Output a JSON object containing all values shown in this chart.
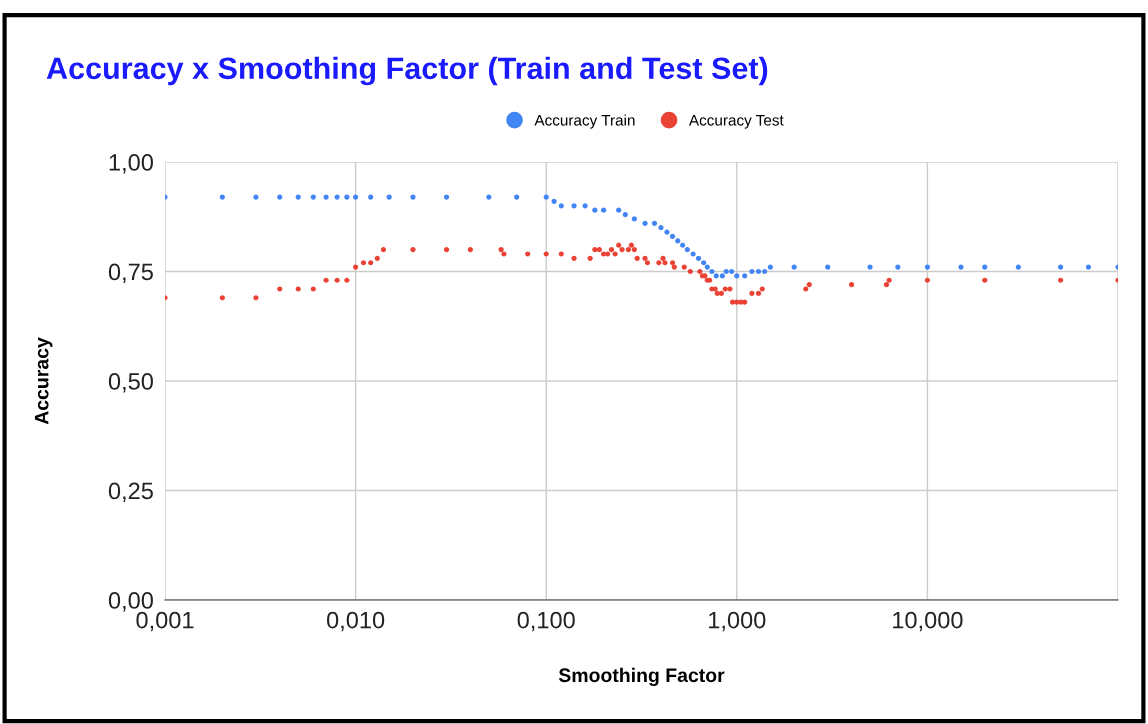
{
  "chart_data": {
    "type": "scatter",
    "title": "Accuracy x Smoothing Factor (Train and Test Set)",
    "xlabel": "Smoothing Factor",
    "ylabel": "Accuracy",
    "log": "x",
    "grid": true,
    "legend": "top",
    "marker": "circle",
    "xlim": [
      0.001,
      100
    ],
    "ylim": [
      0,
      1
    ],
    "xticks": [
      {
        "value": 0.001,
        "label": "0,001"
      },
      {
        "value": 0.01,
        "label": "0,010"
      },
      {
        "value": 0.1,
        "label": "0,100"
      },
      {
        "value": 1,
        "label": "1,000"
      },
      {
        "value": 10,
        "label": "10,000"
      },
      {
        "value": 100,
        "label": null
      }
    ],
    "yticks": [
      {
        "value": 0,
        "label": "0,00"
      },
      {
        "value": 0.25,
        "label": "0,25"
      },
      {
        "value": 0.5,
        "label": "0,50"
      },
      {
        "value": 0.75,
        "label": "0,75"
      },
      {
        "value": 1,
        "label": "1,00"
      }
    ],
    "series": [
      {
        "name": "Accuracy Train",
        "color": "#4285f4",
        "x": [
          0.001,
          0.002,
          0.003,
          0.004,
          0.005,
          0.006,
          0.007,
          0.008,
          0.009,
          0.01,
          0.012,
          0.015,
          0.02,
          0.03,
          0.05,
          0.07,
          0.1,
          0.11,
          0.12,
          0.14,
          0.16,
          0.18,
          0.2,
          0.24,
          0.26,
          0.29,
          0.33,
          0.37,
          0.4,
          0.43,
          0.46,
          0.49,
          0.52,
          0.55,
          0.59,
          0.63,
          0.67,
          0.7,
          0.74,
          0.78,
          0.84,
          0.88,
          0.94,
          1.0,
          1.1,
          1.2,
          1.3,
          1.4,
          1.5,
          2,
          3,
          5,
          7,
          10,
          15,
          20,
          30,
          50,
          70,
          100
        ],
        "values": [
          0.92,
          0.92,
          0.92,
          0.92,
          0.92,
          0.92,
          0.92,
          0.92,
          0.92,
          0.92,
          0.92,
          0.92,
          0.92,
          0.92,
          0.92,
          0.92,
          0.92,
          0.91,
          0.9,
          0.9,
          0.9,
          0.89,
          0.89,
          0.89,
          0.88,
          0.87,
          0.86,
          0.86,
          0.85,
          0.84,
          0.83,
          0.82,
          0.81,
          0.8,
          0.79,
          0.78,
          0.77,
          0.76,
          0.75,
          0.74,
          0.74,
          0.75,
          0.75,
          0.74,
          0.74,
          0.75,
          0.75,
          0.75,
          0.76,
          0.76,
          0.76,
          0.76,
          0.76,
          0.76,
          0.76,
          0.76,
          0.76,
          0.76,
          0.76,
          0.76
        ]
      },
      {
        "name": "Accuracy Test",
        "color": "#ea4335",
        "x": [
          0.001,
          0.002,
          0.003,
          0.004,
          0.005,
          0.006,
          0.007,
          0.008,
          0.009,
          0.01,
          0.011,
          0.012,
          0.013,
          0.014,
          0.02,
          0.03,
          0.04,
          0.058,
          0.06,
          0.08,
          0.1,
          0.12,
          0.14,
          0.17,
          0.18,
          0.19,
          0.2,
          0.21,
          0.22,
          0.23,
          0.24,
          0.25,
          0.27,
          0.28,
          0.29,
          0.3,
          0.33,
          0.34,
          0.39,
          0.41,
          0.42,
          0.46,
          0.47,
          0.53,
          0.57,
          0.64,
          0.66,
          0.68,
          0.7,
          0.72,
          0.74,
          0.77,
          0.79,
          0.83,
          0.87,
          0.92,
          0.95,
          1.0,
          1.05,
          1.1,
          1.2,
          1.3,
          1.36,
          2.3,
          2.4,
          4,
          6.1,
          6.3,
          10,
          20,
          50,
          100
        ],
        "values": [
          0.69,
          0.69,
          0.69,
          0.71,
          0.71,
          0.71,
          0.73,
          0.73,
          0.73,
          0.76,
          0.77,
          0.77,
          0.78,
          0.8,
          0.8,
          0.8,
          0.8,
          0.8,
          0.79,
          0.79,
          0.79,
          0.79,
          0.78,
          0.78,
          0.8,
          0.8,
          0.79,
          0.79,
          0.8,
          0.79,
          0.81,
          0.8,
          0.8,
          0.81,
          0.8,
          0.78,
          0.78,
          0.77,
          0.77,
          0.78,
          0.77,
          0.77,
          0.76,
          0.76,
          0.75,
          0.75,
          0.74,
          0.74,
          0.73,
          0.73,
          0.71,
          0.71,
          0.7,
          0.7,
          0.71,
          0.71,
          0.68,
          0.68,
          0.68,
          0.68,
          0.7,
          0.7,
          0.71,
          0.71,
          0.72,
          0.72,
          0.72,
          0.73,
          0.73,
          0.73,
          0.73,
          0.73
        ]
      }
    ]
  }
}
